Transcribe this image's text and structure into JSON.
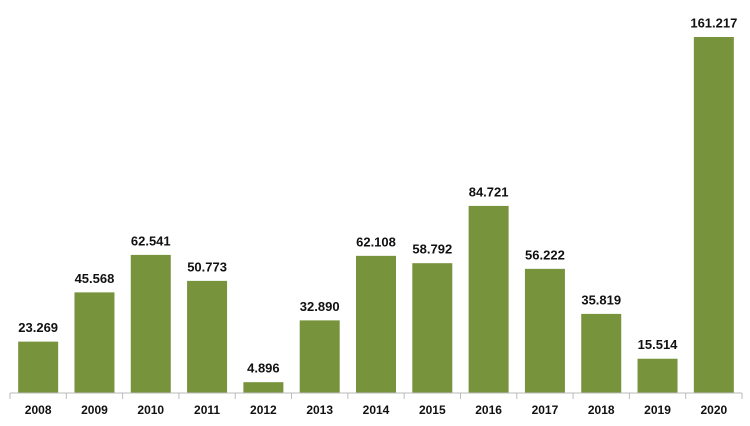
{
  "chart_data": {
    "type": "bar",
    "categories": [
      "2008",
      "2009",
      "2010",
      "2011",
      "2012",
      "2013",
      "2014",
      "2015",
      "2016",
      "2017",
      "2018",
      "2019",
      "2020"
    ],
    "values": [
      23.269,
      45.568,
      62.541,
      50.773,
      4.896,
      32.89,
      62.108,
      58.792,
      84.721,
      56.222,
      35.819,
      15.514,
      161.217
    ],
    "value_labels": [
      "23.269",
      "45.568",
      "62.541",
      "50.773",
      "4.896",
      "32.890",
      "62.108",
      "58.792",
      "84.721",
      "56.222",
      "35.819",
      "15.514",
      "161.217"
    ],
    "color": "#77933c"
  }
}
